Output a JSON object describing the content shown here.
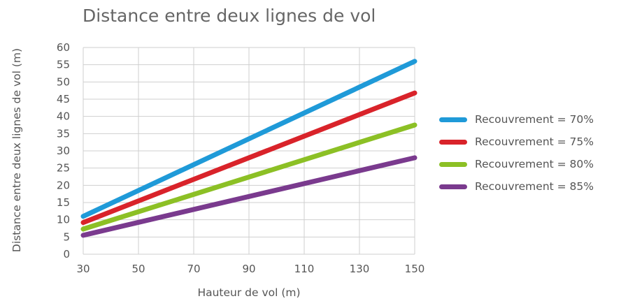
{
  "chart_data": {
    "type": "line",
    "title": "Distance entre deux lignes de vol",
    "xlabel": "Hauteur de vol (m)",
    "ylabel": "Distance entre deux lignes de vol (m)",
    "x": [
      30,
      150
    ],
    "xlim": [
      30,
      150
    ],
    "ylim": [
      0,
      60
    ],
    "xticks": [
      30,
      50,
      70,
      90,
      110,
      130,
      150
    ],
    "yticks": [
      0,
      5,
      10,
      15,
      20,
      25,
      30,
      35,
      40,
      45,
      50,
      55,
      60
    ],
    "grid": true,
    "legend_position": "right",
    "series": [
      {
        "name": "Recouvrement = 70%",
        "color": "#1f9ad8",
        "values": [
          11,
          56
        ]
      },
      {
        "name": "Recouvrement = 75%",
        "color": "#d9232a",
        "values": [
          9.2,
          46.8
        ]
      },
      {
        "name": "Recouvrement = 80%",
        "color": "#8cc025",
        "values": [
          7.3,
          37.5
        ]
      },
      {
        "name": "Recouvrement = 85%",
        "color": "#7a3a8e",
        "values": [
          5.5,
          28
        ]
      }
    ]
  }
}
